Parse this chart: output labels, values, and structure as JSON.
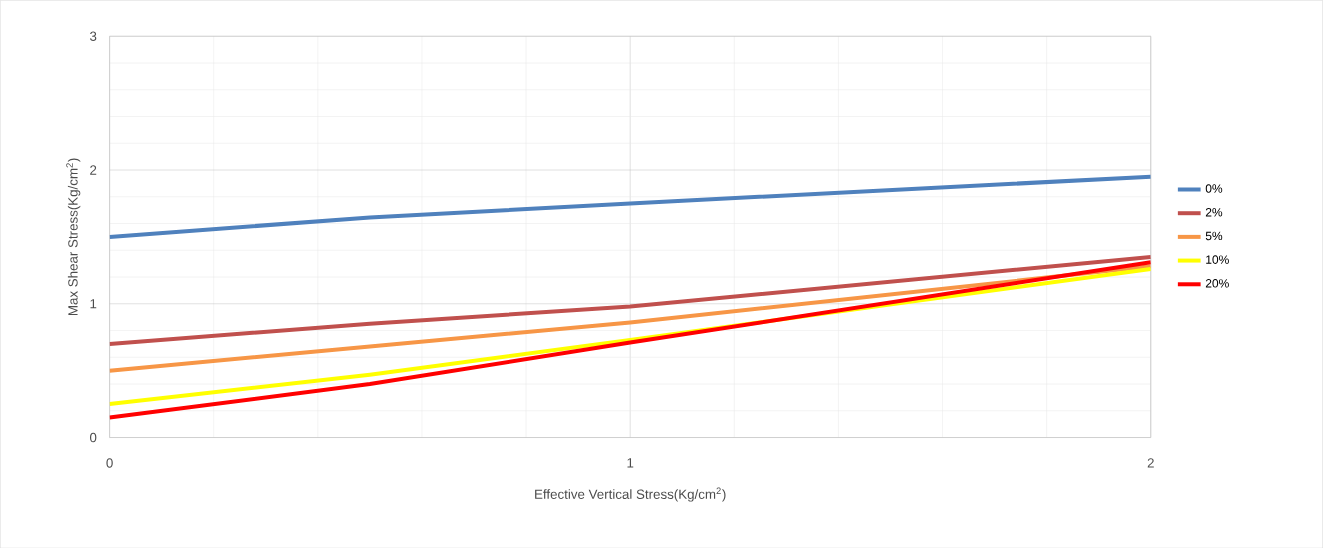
{
  "chart_data": {
    "type": "line",
    "xlabel": "Effective Vertical Stress(Kg/cm$^{2}$)",
    "ylabel": "Max Shear Stress(Kg/cm$^{2}$)",
    "x": [
      0,
      0.5,
      1,
      2
    ],
    "xlim": [
      0,
      2
    ],
    "xticks": [
      0,
      1,
      2
    ],
    "ylim": [
      0,
      3
    ],
    "yticks": [
      0,
      1,
      2,
      3
    ],
    "grid": true,
    "legend": "right",
    "marker": "none",
    "line_style": "solid",
    "series": [
      {
        "name": "0%",
        "color": "#4f81bd",
        "values": [
          1.5,
          1.645,
          1.75,
          1.95
        ]
      },
      {
        "name": "2%",
        "color": "#c0504d",
        "values": [
          0.7,
          0.85,
          0.98,
          1.35
        ]
      },
      {
        "name": "5%",
        "color": "#f79646",
        "values": [
          0.5,
          0.68,
          0.86,
          1.28
        ]
      },
      {
        "name": "10%",
        "color": "#ffff00",
        "values": [
          0.25,
          0.47,
          0.73,
          1.26
        ]
      },
      {
        "name": "20%",
        "color": "#ff0000",
        "values": [
          0.15,
          0.4,
          0.71,
          1.31
        ]
      }
    ]
  }
}
